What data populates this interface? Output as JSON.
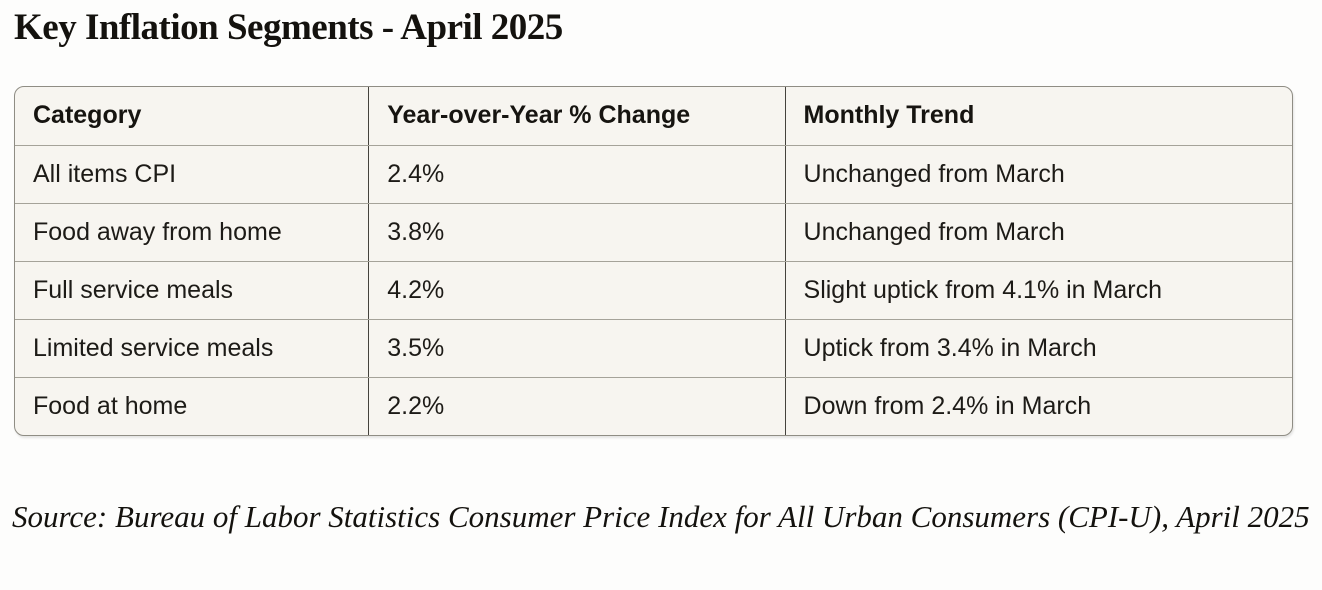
{
  "page": {
    "title": "Key Inflation Segments - April 2025",
    "source_note": "Source: Bureau of Labor Statistics Consumer Price Index for All Urban Consumers (CPI-U), April 2025"
  },
  "table": {
    "columns": [
      "Category",
      "Year-over-Year % Change",
      "Monthly Trend"
    ],
    "rows": [
      {
        "category": "All items CPI",
        "yoy_change": "2.4%",
        "monthly_trend": "Unchanged from March"
      },
      {
        "category": "Food away from home",
        "yoy_change": "3.8%",
        "monthly_trend": "Unchanged from March"
      },
      {
        "category": "Full service meals",
        "yoy_change": "4.2%",
        "monthly_trend": "Slight uptick from 4.1% in March"
      },
      {
        "category": "Limited service meals",
        "yoy_change": "3.5%",
        "monthly_trend": "Uptick from 3.4% in March"
      },
      {
        "category": "Food at home",
        "yoy_change": "2.2%",
        "monthly_trend": "Down from 2.4% in March"
      }
    ]
  },
  "colors": {
    "page_background": "#fdfdfc",
    "table_background": "#f7f5f0",
    "outer_border": "#8f8d84",
    "row_divider": "#a5a399",
    "column_divider": "#45433d",
    "text": "#1d1b17"
  },
  "chart_data": {
    "type": "table",
    "title": "Key Inflation Segments - April 2025",
    "columns": [
      "Category",
      "Year-over-Year % Change",
      "Monthly Trend"
    ],
    "rows": [
      [
        "All items CPI",
        "2.4%",
        "Unchanged from March"
      ],
      [
        "Food away from home",
        "3.8%",
        "Unchanged from March"
      ],
      [
        "Full service meals",
        "4.2%",
        "Slight uptick from 4.1% in March"
      ],
      [
        "Limited service meals",
        "3.5%",
        "Uptick from 3.4% in March"
      ],
      [
        "Food at home",
        "2.2%",
        "Down from 2.4% in March"
      ]
    ],
    "yoy_percent_values": [
      2.4,
      3.8,
      4.2,
      3.5,
      2.2
    ],
    "march_comparison_values": [
      2.4,
      3.8,
      4.1,
      3.4,
      2.4
    ],
    "source": "Source: Bureau of Labor Statistics Consumer Price Index for All Urban Consumers (CPI-U), April 2025"
  }
}
